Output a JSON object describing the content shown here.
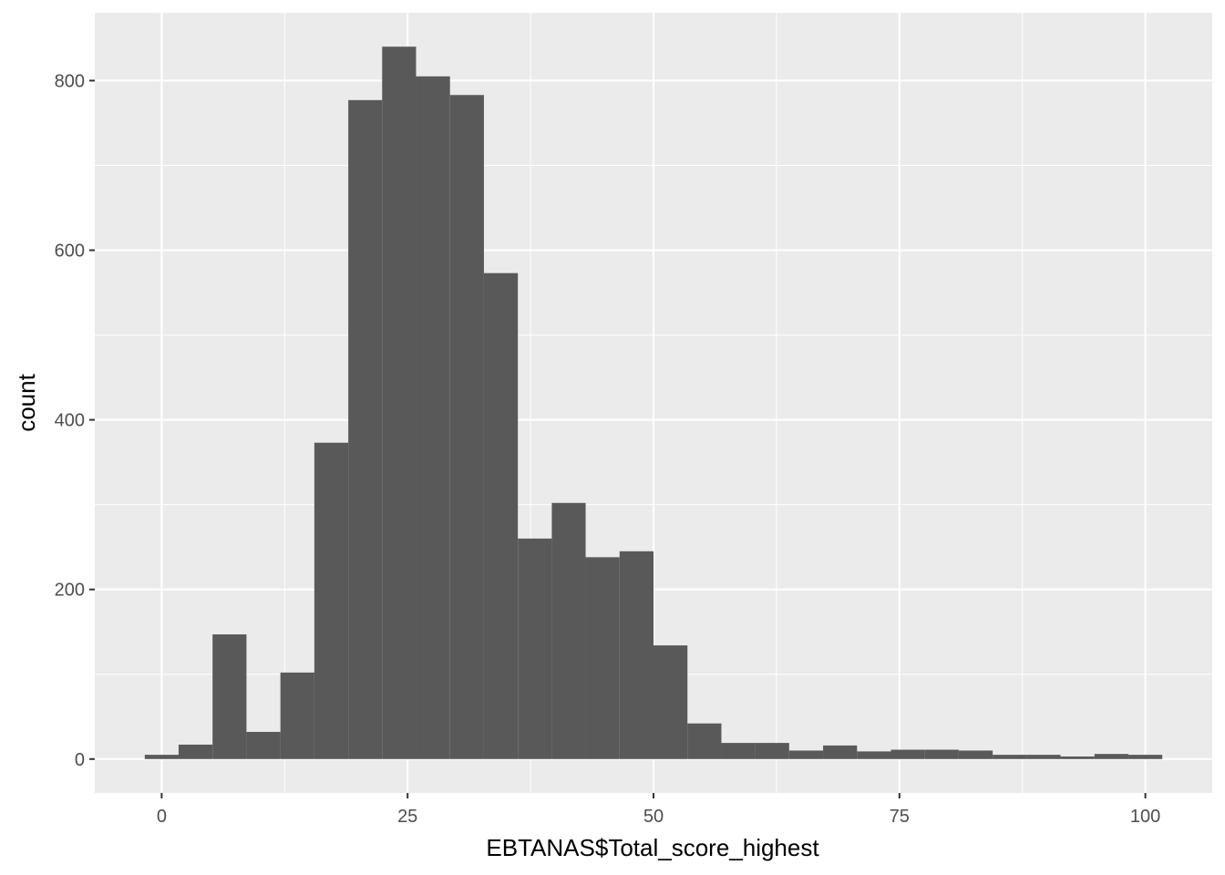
{
  "chart_data": {
    "type": "histogram",
    "title": "",
    "xlabel": "EBTANAS$Total_score_highest",
    "ylabel": "count",
    "xlim": [
      -6.8,
      106.8
    ],
    "ylim": [
      -40,
      880
    ],
    "x_ticks": [
      0,
      25,
      50,
      75,
      100
    ],
    "y_ticks": [
      0,
      200,
      400,
      600,
      800
    ],
    "grid": true,
    "legend": "none",
    "bin_width": 3.45,
    "bins": [
      {
        "x0": -1.72,
        "x1": 1.72,
        "count": 5
      },
      {
        "x0": 1.72,
        "x1": 5.17,
        "count": 17
      },
      {
        "x0": 5.17,
        "x1": 8.62,
        "count": 147
      },
      {
        "x0": 8.62,
        "x1": 12.07,
        "count": 32
      },
      {
        "x0": 12.07,
        "x1": 15.52,
        "count": 102
      },
      {
        "x0": 15.52,
        "x1": 18.97,
        "count": 373
      },
      {
        "x0": 18.97,
        "x1": 22.41,
        "count": 777
      },
      {
        "x0": 22.41,
        "x1": 25.86,
        "count": 840
      },
      {
        "x0": 25.86,
        "x1": 29.31,
        "count": 805
      },
      {
        "x0": 29.31,
        "x1": 32.76,
        "count": 783
      },
      {
        "x0": 32.76,
        "x1": 36.21,
        "count": 573
      },
      {
        "x0": 36.21,
        "x1": 39.66,
        "count": 260
      },
      {
        "x0": 39.66,
        "x1": 43.1,
        "count": 302
      },
      {
        "x0": 43.1,
        "x1": 46.55,
        "count": 238
      },
      {
        "x0": 46.55,
        "x1": 50.0,
        "count": 245
      },
      {
        "x0": 50.0,
        "x1": 53.45,
        "count": 134
      },
      {
        "x0": 53.45,
        "x1": 56.9,
        "count": 42
      },
      {
        "x0": 56.9,
        "x1": 60.34,
        "count": 19
      },
      {
        "x0": 60.34,
        "x1": 63.79,
        "count": 19
      },
      {
        "x0": 63.79,
        "x1": 67.24,
        "count": 10
      },
      {
        "x0": 67.24,
        "x1": 70.69,
        "count": 16
      },
      {
        "x0": 70.69,
        "x1": 74.14,
        "count": 9
      },
      {
        "x0": 74.14,
        "x1": 77.59,
        "count": 11
      },
      {
        "x0": 77.59,
        "x1": 81.03,
        "count": 11
      },
      {
        "x0": 81.03,
        "x1": 84.48,
        "count": 10
      },
      {
        "x0": 84.48,
        "x1": 87.93,
        "count": 5
      },
      {
        "x0": 87.93,
        "x1": 91.38,
        "count": 5
      },
      {
        "x0": 91.38,
        "x1": 94.83,
        "count": 3
      },
      {
        "x0": 94.83,
        "x1": 98.28,
        "count": 6
      },
      {
        "x0": 98.28,
        "x1": 101.72,
        "count": 5
      }
    ],
    "colors": {
      "panel": "#ebebeb",
      "grid": "#ffffff",
      "bar": "#595959",
      "tick_text": "#4d4d4d",
      "tick_mark": "#333333",
      "title_text": "#000000"
    }
  }
}
